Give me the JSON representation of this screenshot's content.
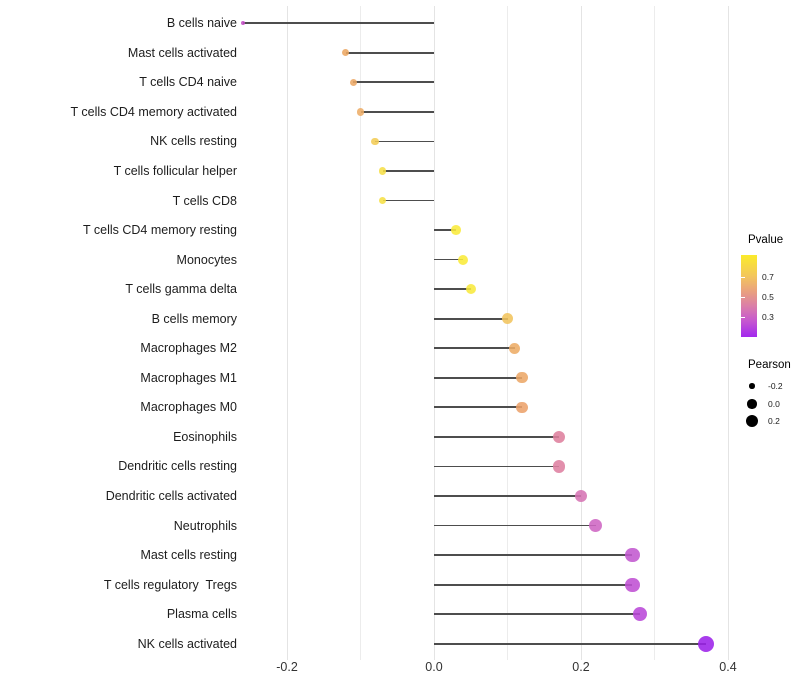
{
  "chart_data": {
    "type": "lollipop",
    "orientation": "horizontal",
    "title": "",
    "xlabel": "",
    "ylabel": "",
    "xlim": [
      -0.29,
      0.46
    ],
    "x_ticks": [
      -0.2,
      0.0,
      0.2,
      0.4
    ],
    "x_tick_labels": [
      "-0.2",
      "0.0",
      "0.2",
      "0.4"
    ],
    "x_grid_minor": [
      -0.1,
      0.1,
      0.3
    ],
    "grid": "on",
    "legend_position": "right",
    "categories": [
      "B cells naive",
      "Mast cells activated",
      "T cells CD4 naive",
      "T cells CD4 memory activated",
      "NK cells resting",
      "T cells follicular helper",
      "T cells CD8",
      "T cells CD4 memory resting",
      "Monocytes",
      "T cells gamma delta",
      "B cells memory",
      "Macrophages M2",
      "Macrophages M1",
      "Macrophages M0",
      "Eosinophils",
      "Dendritic cells resting",
      "Dendritic cells activated",
      "Neutrophils",
      "T cells regulatory  Tregs",
      "Mast cells resting",
      "Plasma cells",
      "NK cells activated"
    ],
    "row_order_note": "rows 19-20 displayed as: Mast cells resting then T cells regulatory  Tregs",
    "display_categories": [
      "B cells naive",
      "Mast cells activated",
      "T cells CD4 naive",
      "T cells CD4 memory activated",
      "NK cells resting",
      "T cells follicular helper",
      "T cells CD8",
      "T cells CD4 memory resting",
      "Monocytes",
      "T cells gamma delta",
      "B cells memory",
      "Macrophages M2",
      "Macrophages M1",
      "Macrophages M0",
      "Eosinophils",
      "Dendritic cells resting",
      "Dendritic cells activated",
      "Neutrophils",
      "Mast cells resting",
      "T cells regulatory  Tregs",
      "Plasma cells",
      "NK cells activated"
    ],
    "series": [
      {
        "name": "Pearson",
        "values": [
          -0.26,
          -0.12,
          -0.11,
          -0.1,
          -0.08,
          -0.07,
          -0.07,
          0.03,
          0.04,
          0.05,
          0.1,
          0.11,
          0.12,
          0.12,
          0.17,
          0.17,
          0.2,
          0.22,
          0.27,
          0.27,
          0.28,
          0.37
        ]
      },
      {
        "name": "Pvalue_approx_from_color",
        "values": [
          0.3,
          0.58,
          0.57,
          0.56,
          0.7,
          0.75,
          0.76,
          0.82,
          0.82,
          0.81,
          0.66,
          0.57,
          0.56,
          0.55,
          0.45,
          0.45,
          0.4,
          0.35,
          0.3,
          0.28,
          0.26,
          0.14
        ]
      }
    ],
    "point_colors": [
      "#C44EC6",
      "#ECA763",
      "#ECA966",
      "#EDAD68",
      "#F3CC55",
      "#F6DF48",
      "#F6E045",
      "#F9EA3B",
      "#F9EA39",
      "#F8E93D",
      "#F1C45D",
      "#EDAC65",
      "#ECA768",
      "#EC A26B",
      "#DE809D",
      "#DE80A0",
      "#D674B4",
      "#CE65C3",
      "#C258CF",
      "#BF50D3",
      "#BA48D8",
      "#9C22E9"
    ]
  },
  "legend": {
    "color": {
      "title": "Pvalue",
      "tick_labels": [
        "0.7",
        "0.5",
        "0.3"
      ],
      "tick_values": [
        0.7,
        0.5,
        0.3
      ],
      "range_approx": [
        0.92,
        0.1
      ],
      "gradient_stops": [
        "#FBEB2A 0%",
        "#F3C75B 25%",
        "#E99F80 45%",
        "#DB7FA8 62%",
        "#C658CF 80%",
        "#A228EE 100%"
      ]
    },
    "size": {
      "title": "Pearson",
      "items": [
        {
          "label": "-0.2",
          "value": -0.2
        },
        {
          "label": "0.0",
          "value": 0.0
        },
        {
          "label": "0.2",
          "value": 0.2
        }
      ],
      "dot_color": "#000000"
    }
  },
  "axis": {
    "tick_color": "#333333",
    "gridline_color": "#ececec",
    "stem_color": "#4d4d4d",
    "background": "#ffffff"
  }
}
